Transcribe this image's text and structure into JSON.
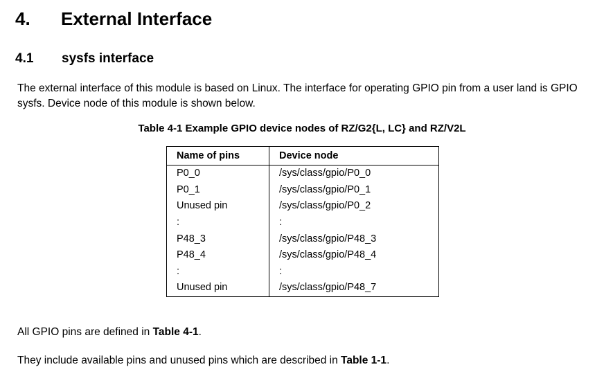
{
  "heading1": {
    "number": "4.",
    "title": "External Interface"
  },
  "heading2": {
    "number": "4.1",
    "title": "sysfs interface"
  },
  "intro": "The external interface of this module is based on Linux. The interface for operating GPIO pin from a user land is GPIO sysfs. Device node of this module is shown below.",
  "table": {
    "caption": "Table 4-1 Example GPIO device nodes of RZ/G2{L, LC} and RZ/V2L",
    "headers": [
      "Name of pins",
      "Device node"
    ],
    "rows": [
      [
        "P0_0",
        "/sys/class/gpio/P0_0"
      ],
      [
        "P0_1",
        "/sys/class/gpio/P0_1"
      ],
      [
        "Unused pin",
        "/sys/class/gpio/P0_2"
      ],
      [
        ":",
        ":"
      ],
      [
        "P48_3",
        "/sys/class/gpio/P48_3"
      ],
      [
        "P48_4",
        "/sys/class/gpio/P48_4"
      ],
      [
        ":",
        ":"
      ],
      [
        "Unused pin",
        "/sys/class/gpio/P48_7"
      ]
    ]
  },
  "note1": {
    "text": "All GPIO pins are defined in ",
    "ref": "Table 4-1",
    "end": "."
  },
  "note2": {
    "text": "They include available pins and unused pins which are described in ",
    "ref": "Table 1-1",
    "end": "."
  }
}
